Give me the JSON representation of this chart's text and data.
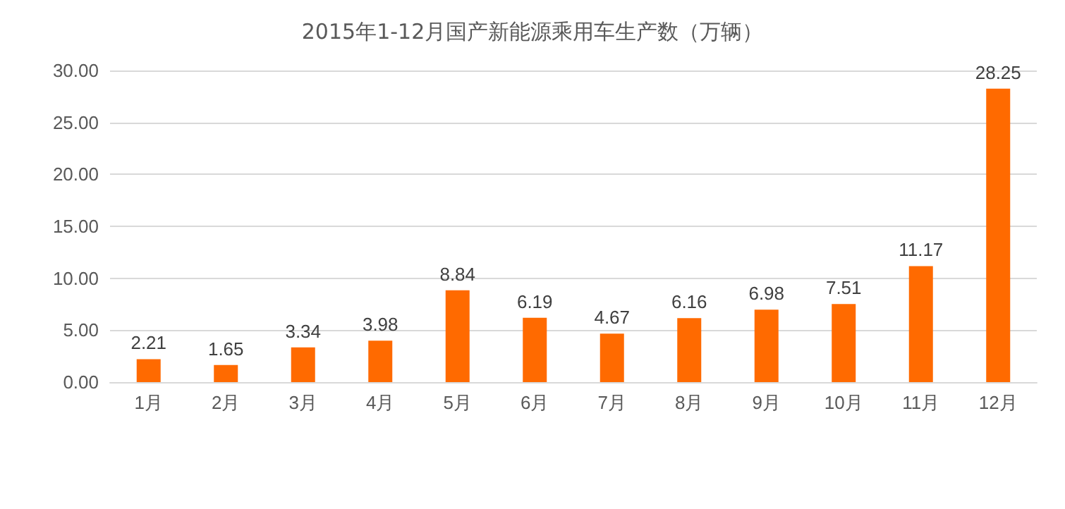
{
  "chart_data": {
    "type": "bar",
    "title": "2015年1-12月国产新能源乘用车生产数（万辆）",
    "categories": [
      "1月",
      "2月",
      "3月",
      "4月",
      "5月",
      "6月",
      "7月",
      "8月",
      "9月",
      "10月",
      "11月",
      "12月"
    ],
    "values": [
      2.21,
      1.65,
      3.34,
      3.98,
      8.84,
      6.19,
      4.67,
      6.16,
      6.98,
      7.51,
      11.17,
      28.25
    ],
    "color": "#ff6a00",
    "ylim": [
      0,
      30
    ],
    "yticks": [
      {
        "value": 0,
        "label": "0.00"
      },
      {
        "value": 5,
        "label": "5.00"
      },
      {
        "value": 10,
        "label": "10.00"
      },
      {
        "value": 15,
        "label": "15.00"
      },
      {
        "value": 20,
        "label": "20.00"
      },
      {
        "value": 25,
        "label": "25.00"
      },
      {
        "value": 30,
        "label": "30.00"
      }
    ],
    "grid": "y",
    "data_labels": true
  }
}
